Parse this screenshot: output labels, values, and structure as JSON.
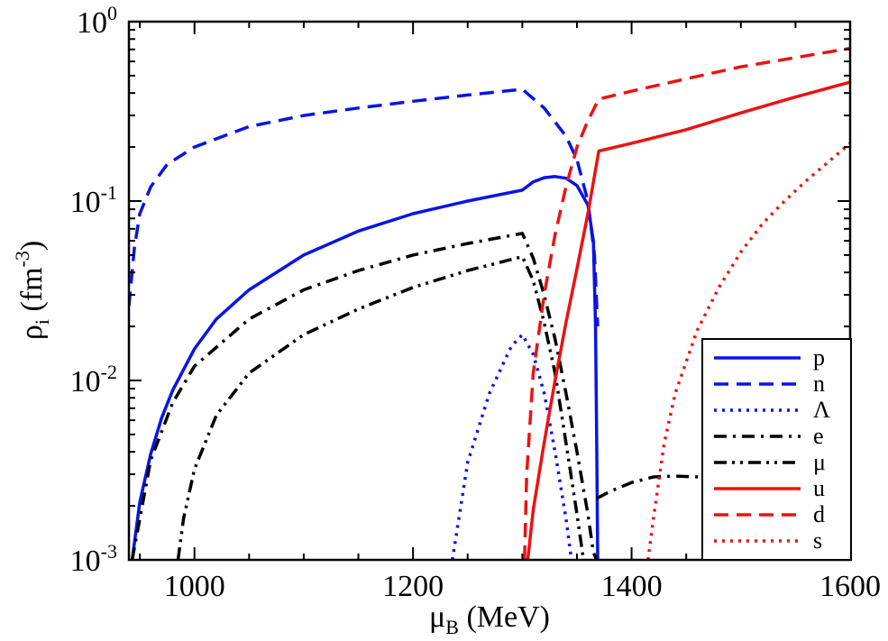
{
  "chart_data": {
    "type": "line",
    "title": "",
    "xlabel": {
      "main": "μ",
      "sub": "B",
      "rest": " (MeV)"
    },
    "ylabel": {
      "main": "ρ",
      "sub": "i",
      "rest": " (fm",
      "sup": "-3",
      "close": ")"
    },
    "x_range": [
      940,
      1600
    ],
    "y_range": [
      0.001,
      1
    ],
    "y_scale": "log",
    "x_ticks": [
      1000,
      1200,
      1400,
      1600
    ],
    "x_tick_labels": [
      "1000",
      "1200",
      "1400",
      "1600"
    ],
    "y_ticks": [
      {
        "value": 0.001,
        "base": "10",
        "exp": "-3"
      },
      {
        "value": 0.01,
        "base": "10",
        "exp": "-2"
      },
      {
        "value": 0.1,
        "base": "10",
        "exp": "-1"
      },
      {
        "value": 1,
        "base": "10",
        "exp": "0"
      }
    ],
    "grid": false,
    "legend_position": "bottom-right",
    "colors": {
      "blue": "#0a14e6",
      "black": "#000000",
      "red": "#ee1111"
    },
    "series": [
      {
        "name": "p",
        "color": "#0a14e6",
        "dash": "solid",
        "x": [
          943,
          950,
          960,
          970,
          980,
          1000,
          1020,
          1050,
          1100,
          1150,
          1200,
          1250,
          1300,
          1310,
          1320,
          1330,
          1340,
          1350,
          1360,
          1365,
          1367,
          1368,
          1369
        ],
        "y": [
          0.001,
          0.0021,
          0.0039,
          0.0062,
          0.0088,
          0.015,
          0.022,
          0.032,
          0.05,
          0.068,
          0.085,
          0.1,
          0.115,
          0.128,
          0.135,
          0.137,
          0.134,
          0.122,
          0.095,
          0.06,
          0.02,
          0.005,
          0.001
        ]
      },
      {
        "name": "n",
        "color": "#0a14e6",
        "dash": "dashed",
        "x": [
          940,
          945,
          950,
          960,
          975,
          1000,
          1050,
          1100,
          1150,
          1200,
          1250,
          1300,
          1320,
          1340,
          1350,
          1360,
          1366,
          1369
        ],
        "y": [
          0.026,
          0.055,
          0.085,
          0.12,
          0.16,
          0.2,
          0.26,
          0.3,
          0.33,
          0.36,
          0.39,
          0.42,
          0.33,
          0.23,
          0.17,
          0.1,
          0.05,
          0.02
        ]
      },
      {
        "name": "Λ",
        "color": "#0a14e6",
        "dash": "dotted",
        "x": [
          1236,
          1250,
          1270,
          1290,
          1300,
          1310,
          1320,
          1330,
          1340,
          1345
        ],
        "y": [
          0.001,
          0.0035,
          0.0085,
          0.0155,
          0.018,
          0.014,
          0.0085,
          0.004,
          0.0017,
          0.001
        ]
      },
      {
        "name": "e",
        "color": "#000000",
        "dash": "dashdot",
        "x": [
          943,
          960,
          980,
          1000,
          1050,
          1100,
          1150,
          1200,
          1250,
          1300,
          1310,
          1320,
          1330,
          1340,
          1350,
          1360,
          1365,
          1368
        ],
        "y": [
          0.001,
          0.0036,
          0.0075,
          0.012,
          0.022,
          0.032,
          0.041,
          0.05,
          0.058,
          0.066,
          0.048,
          0.03,
          0.017,
          0.0085,
          0.004,
          0.0018,
          0.0011,
          0.001
        ]
      },
      {
        "name": "μ",
        "color": "#000000",
        "dash": "dashdotdot",
        "x": [
          985,
          990,
          1000,
          1020,
          1050,
          1100,
          1150,
          1200,
          1250,
          1300,
          1310,
          1320,
          1330,
          1340,
          1350,
          1356
        ],
        "y": [
          0.001,
          0.0017,
          0.0032,
          0.0064,
          0.011,
          0.018,
          0.025,
          0.033,
          0.041,
          0.049,
          0.036,
          0.021,
          0.011,
          0.0045,
          0.0018,
          0.001
        ]
      },
      {
        "name": "μ",
        "color": "#000000",
        "dash": "dashdot",
        "x": [
          1368,
          1380,
          1400,
          1420,
          1440,
          1460,
          1475
        ],
        "y": [
          0.0022,
          0.0024,
          0.0027,
          0.0029,
          0.00293,
          0.0029,
          0.0028
        ]
      },
      {
        "name": "u",
        "color": "#ee1111",
        "dash": "solid",
        "x": [
          1305,
          1310,
          1320,
          1330,
          1340,
          1350,
          1360,
          1370,
          1400,
          1450,
          1500,
          1550,
          1600
        ],
        "y": [
          0.001,
          0.0019,
          0.0045,
          0.01,
          0.021,
          0.042,
          0.085,
          0.19,
          0.21,
          0.25,
          0.31,
          0.38,
          0.46
        ]
      },
      {
        "name": "d",
        "color": "#ee1111",
        "dash": "dashed",
        "x": [
          1302,
          1304,
          1310,
          1320,
          1330,
          1340,
          1350,
          1360,
          1370,
          1400,
          1450,
          1500,
          1550,
          1600
        ],
        "y": [
          0.001,
          0.003,
          0.011,
          0.03,
          0.065,
          0.12,
          0.2,
          0.28,
          0.37,
          0.41,
          0.48,
          0.56,
          0.63,
          0.71
        ]
      },
      {
        "name": "s",
        "color": "#ee1111",
        "dash": "dotted",
        "x": [
          1415,
          1420,
          1430,
          1440,
          1460,
          1480,
          1500,
          1520,
          1540,
          1560,
          1580,
          1600
        ],
        "y": [
          0.001,
          0.0017,
          0.0045,
          0.0085,
          0.019,
          0.033,
          0.052,
          0.075,
          0.1,
          0.13,
          0.165,
          0.21
        ]
      }
    ],
    "legend": [
      {
        "label": "p",
        "color": "#0a14e6",
        "dash": "solid"
      },
      {
        "label": "n",
        "color": "#0a14e6",
        "dash": "dashed"
      },
      {
        "label": "Λ",
        "color": "#0a14e6",
        "dash": "dotted"
      },
      {
        "label": "e",
        "color": "#000000",
        "dash": "dashdot"
      },
      {
        "label": "μ",
        "color": "#000000",
        "dash": "dashdotdot"
      },
      {
        "label": "u",
        "color": "#ee1111",
        "dash": "solid"
      },
      {
        "label": "d",
        "color": "#ee1111",
        "dash": "dashed"
      },
      {
        "label": "s",
        "color": "#ee1111",
        "dash": "dotted"
      }
    ]
  }
}
